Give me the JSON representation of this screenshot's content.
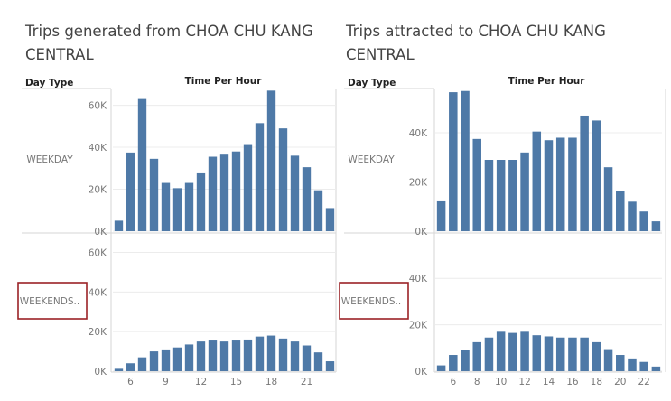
{
  "chart_data": [
    {
      "type": "bar",
      "title": [
        "Trips generated from CHOA CHU KANG",
        "CENTRAL"
      ],
      "row_header": "Day Type",
      "column_header": "Time Per Hour",
      "hours": [
        5,
        6,
        7,
        8,
        9,
        10,
        11,
        12,
        13,
        14,
        15,
        16,
        17,
        18,
        19,
        20,
        21,
        22,
        23
      ],
      "x_ticks": [
        6,
        9,
        12,
        15,
        18,
        21
      ],
      "y_ticks": [
        0,
        20000,
        40000,
        60000
      ],
      "y_tick_labels": [
        "0K",
        "20K",
        "40K",
        "60K"
      ],
      "ylim": [
        0,
        68000
      ],
      "series": [
        {
          "name": "WEEKDAY",
          "values": [
            5000,
            37500,
            63000,
            34500,
            23000,
            20500,
            23000,
            28000,
            35500,
            36500,
            38000,
            41500,
            51500,
            67000,
            49000,
            36000,
            30500,
            19500,
            11000
          ]
        },
        {
          "name": "WEEKENDS..",
          "highlighted": true,
          "values": [
            1200,
            4000,
            7000,
            10000,
            11000,
            12000,
            13500,
            15000,
            15500,
            15000,
            15500,
            16000,
            17500,
            18000,
            16500,
            15000,
            13000,
            9500,
            5000
          ]
        }
      ]
    },
    {
      "type": "bar",
      "title": [
        "Trips attracted to CHOA CHU KANG",
        "CENTRAL"
      ],
      "row_header": "Day Type",
      "column_header": "Time Per Hour",
      "hours": [
        5,
        6,
        7,
        8,
        9,
        10,
        11,
        12,
        13,
        14,
        15,
        16,
        17,
        18,
        19,
        20,
        21,
        22,
        23
      ],
      "x_ticks": [
        6,
        8,
        10,
        12,
        14,
        16,
        18,
        20,
        22
      ],
      "y_ticks": [
        0,
        20000,
        40000
      ],
      "y_tick_labels": [
        "0K",
        "20K",
        "40K"
      ],
      "ylim": [
        0,
        58000
      ],
      "series": [
        {
          "name": "WEEKDAY",
          "values": [
            12500,
            56500,
            57000,
            37500,
            29000,
            29000,
            29000,
            32000,
            40500,
            37000,
            38000,
            38000,
            47000,
            45000,
            26000,
            16500,
            12000,
            8000,
            4000
          ]
        },
        {
          "name": "WEEKENDS..",
          "highlighted": true,
          "values": [
            2500,
            7000,
            9000,
            12500,
            14500,
            17000,
            16500,
            17000,
            15500,
            15000,
            14500,
            14500,
            14500,
            12500,
            9500,
            7000,
            5500,
            4000,
            2000
          ]
        }
      ]
    }
  ]
}
